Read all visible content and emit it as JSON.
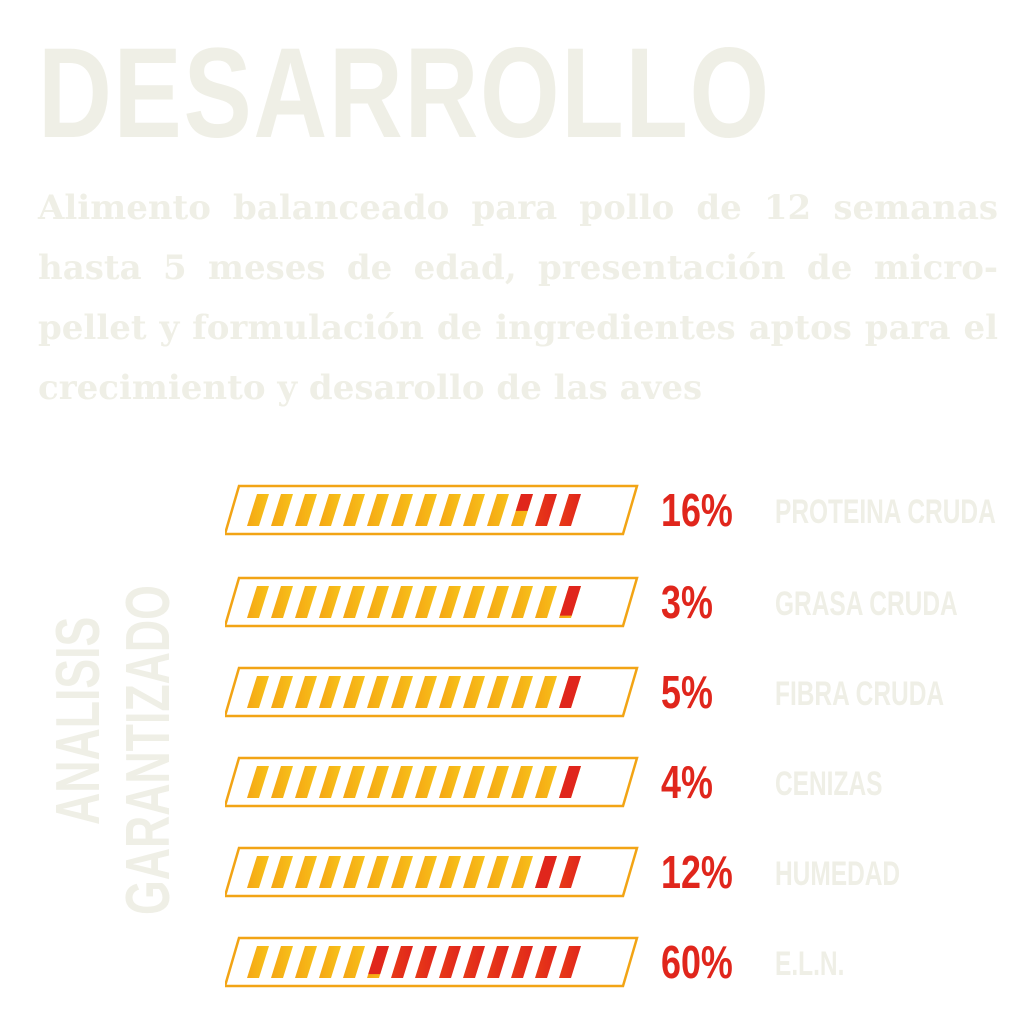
{
  "header": {
    "title": "DESARROLLO",
    "description": "Alimento balanceado para pollo de 12 semanas hasta 5 meses de edad, presentación de micro-pellet y formulación de ingredientes aptos para el crecimiento y desarollo de las aves"
  },
  "side_label": {
    "line1": "ANALISIS",
    "line2": "GARANTIZADO"
  },
  "colors": {
    "text_light": "#efefe6",
    "orange": "#f5a614",
    "yellow": "#f7c21a",
    "red": "#e0261c",
    "frame": "#f2a415"
  },
  "analysis": [
    {
      "percent": "16%",
      "label": "PROTEINA CRUDA",
      "red_fraction": 0.16
    },
    {
      "percent": "3%",
      "label": "GRASA CRUDA",
      "red_fraction": 0.03
    },
    {
      "percent": "5%",
      "label": "FIBRA CRUDA",
      "red_fraction": 0.05
    },
    {
      "percent": "4%",
      "label": "CENIZAS",
      "red_fraction": 0.04
    },
    {
      "percent": "12%",
      "label": "HUMEDAD",
      "red_fraction": 0.12
    },
    {
      "percent": "60%",
      "label": "E.L.N.",
      "red_fraction": 0.6
    }
  ]
}
